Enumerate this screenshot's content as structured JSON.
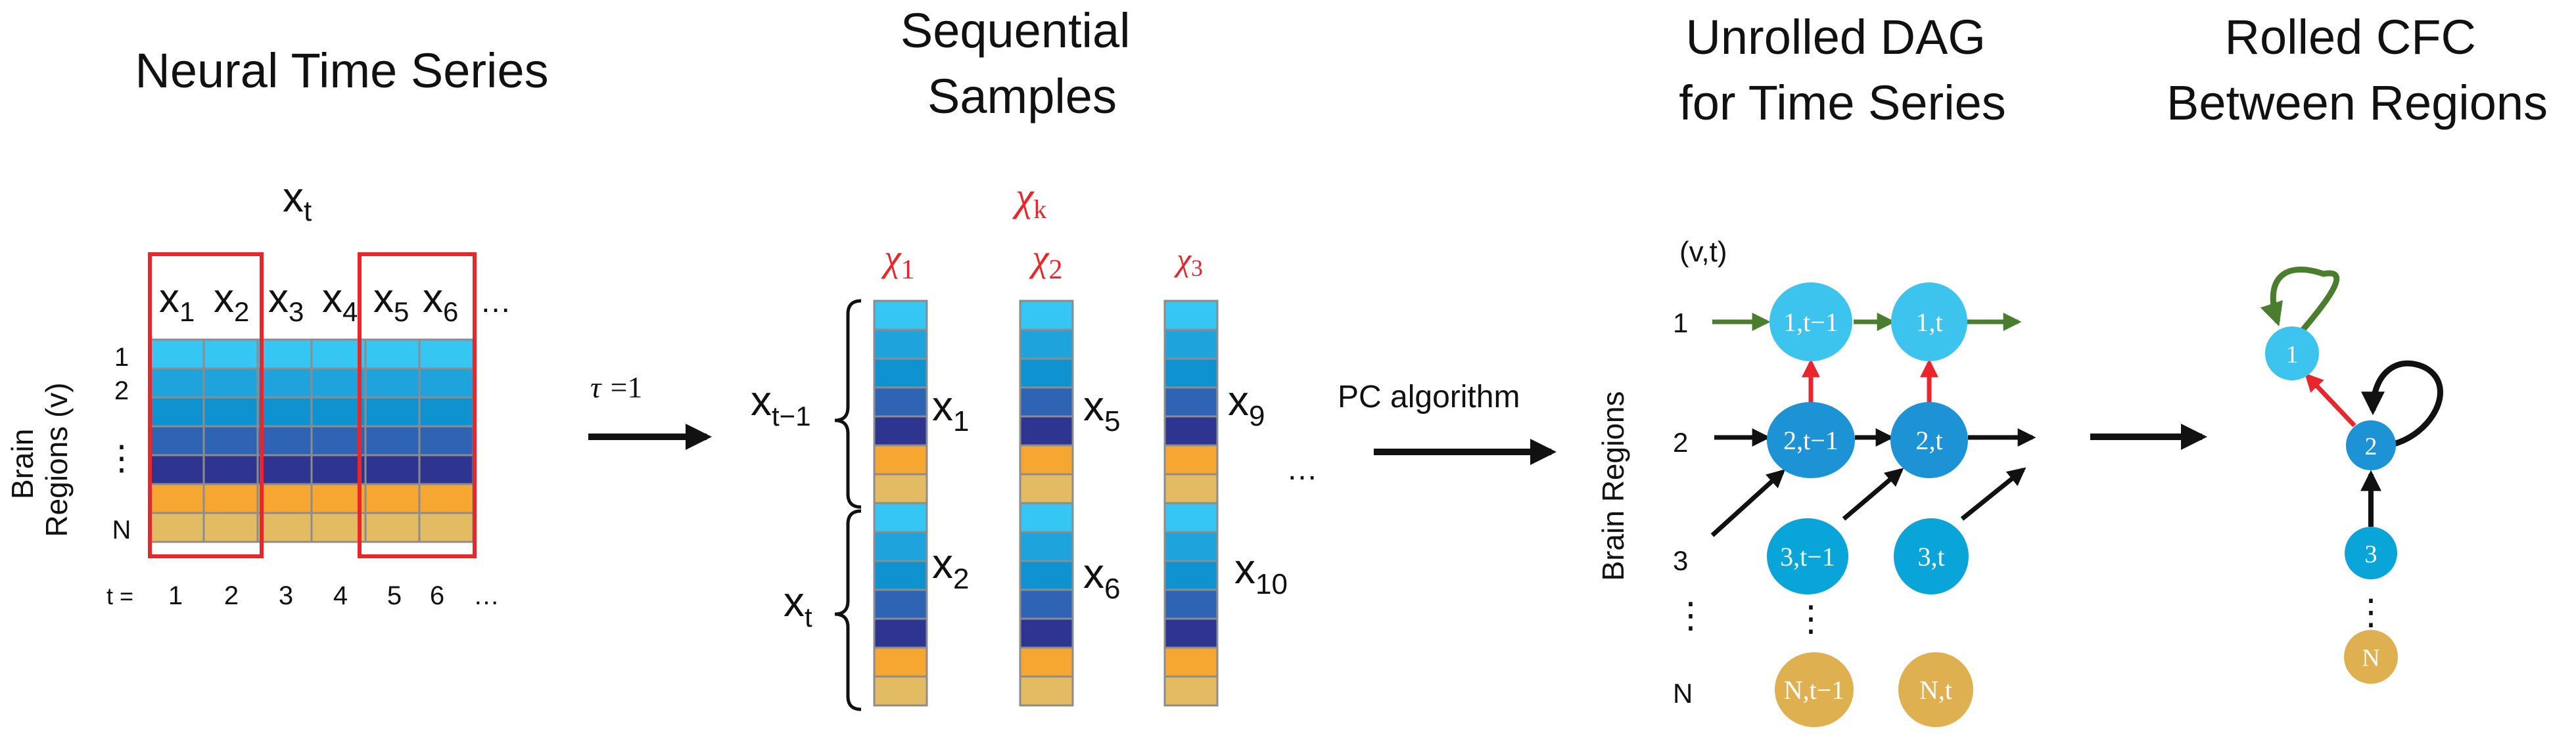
{
  "panels": {
    "neural": {
      "title": "Neural Time Series"
    },
    "sequential": {
      "title_line1": "Sequential",
      "title_line2": "Samples"
    },
    "unrolled": {
      "title_line1": "Unrolled DAG",
      "title_line2": "for Time Series"
    },
    "rolled": {
      "title_line1": "Rolled CFC",
      "title_line2": "Between Regions"
    }
  },
  "matrix": {
    "top_label": "x_t",
    "columns": [
      "1",
      "2",
      "3",
      "4",
      "5",
      "6"
    ],
    "ellipsis": "…",
    "row_labels": {
      "r1": "1",
      "r2": "2",
      "dots": "⋮",
      "rN": "N"
    },
    "y_label_line1": "Brain",
    "y_label_line2": "Regions (v)",
    "t_prefix": "t =",
    "t_values": [
      "1",
      "2",
      "3",
      "4",
      "5",
      "6"
    ],
    "t_ellipsis": "…",
    "row_colors": [
      "#35c6f4",
      "#1ea3dc",
      "#0f93d0",
      "#2f64b4",
      "#2d3591",
      "#f5a732",
      "#e3bb63"
    ]
  },
  "tau": {
    "symbol": "τ",
    "text": "=1"
  },
  "samples": {
    "chi_header": "χ",
    "chi_header_sub": "k",
    "chis": [
      {
        "sym": "χ",
        "sub": "1"
      },
      {
        "sym": "χ",
        "sub": "2"
      },
      {
        "sym": "χ",
        "sub": "3"
      }
    ],
    "brace_top_label": "x",
    "brace_top_sub": "t−1",
    "brace_bottom_label": "x",
    "brace_bottom_sub": "t",
    "col1": {
      "top": "1",
      "bottom": "2"
    },
    "col2": {
      "top": "5",
      "bottom": "6"
    },
    "col3": {
      "top": "9",
      "bottom": "10"
    },
    "ellipsis": "…"
  },
  "pc": {
    "label": "PC algorithm"
  },
  "dag": {
    "header": "(v,t)",
    "y_label": "Brain Regions",
    "row_labels": [
      "1",
      "2",
      "3",
      "⋮",
      "N"
    ],
    "nodes": [
      {
        "id": "n1a",
        "label": "1,t−1",
        "color": "#3cc3ee"
      },
      {
        "id": "n1b",
        "label": "1,t",
        "color": "#3cc3ee"
      },
      {
        "id": "n2a",
        "label": "2,t−1",
        "color": "#1d93d6"
      },
      {
        "id": "n2b",
        "label": "2,t",
        "color": "#1d93d6"
      },
      {
        "id": "n3a",
        "label": "3,t−1",
        "color": "#0aa5d8"
      },
      {
        "id": "n3b",
        "label": "3,t",
        "color": "#0aa5d8"
      },
      {
        "id": "nNa",
        "label": "N,t−1",
        "color": "#deb050"
      },
      {
        "id": "nNb",
        "label": "N,t",
        "color": "#deb050"
      }
    ],
    "dots": "⋮"
  },
  "rolled": {
    "nodes": [
      {
        "id": "r1",
        "label": "1",
        "color": "#3cc3ee"
      },
      {
        "id": "r2",
        "label": "2",
        "color": "#1d93d6"
      },
      {
        "id": "r3",
        "label": "3",
        "color": "#0aa5d8"
      },
      {
        "id": "rN",
        "label": "N",
        "color": "#deb050"
      }
    ],
    "dots": "⋮"
  },
  "colors": {
    "red": "#e8262b",
    "green": "#4a7d2d",
    "black": "#111111",
    "grid": "#8c8c8c"
  }
}
